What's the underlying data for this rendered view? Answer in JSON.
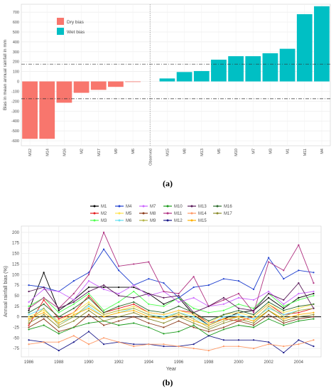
{
  "chart_data": [
    {
      "type": "bar",
      "label": "(a)",
      "ylabel": "Bias in mean annual rainfall in mm",
      "ylim": [
        -650,
        780
      ],
      "yticks": [
        -600,
        -500,
        -400,
        -300,
        -200,
        -100,
        0,
        100,
        200,
        300,
        400,
        500,
        600,
        700
      ],
      "categories": [
        "M12",
        "M14",
        "M16",
        "M2",
        "M17",
        "M9",
        "M6",
        "Observed",
        "M15",
        "M8",
        "M13",
        "M5",
        "M10",
        "M7",
        "M3",
        "M1",
        "M11",
        "M4"
      ],
      "values": [
        -580,
        -580,
        -215,
        -115,
        -85,
        -55,
        -5,
        0,
        30,
        95,
        105,
        220,
        255,
        255,
        285,
        330,
        680,
        760
      ],
      "reference_lines": [
        175,
        -175
      ],
      "legend": [
        {
          "name": "Dry bias",
          "color": "#f8766d"
        },
        {
          "name": "Wet bias",
          "color": "#00bfc4"
        }
      ],
      "grid": true
    },
    {
      "type": "line",
      "label": "(b)",
      "xlabel": "Year",
      "ylabel": "Annual rainfall bias (%)",
      "xlim": [
        1985.5,
        2005.5
      ],
      "ylim": [
        -95,
        215
      ],
      "xticks": [
        1986,
        1988,
        1990,
        1992,
        1994,
        1996,
        1998,
        2000,
        2002,
        2004
      ],
      "yticks": [
        -75,
        -50,
        -25,
        0,
        25,
        50,
        75,
        100,
        125,
        150,
        175,
        200
      ],
      "x": [
        1986,
        1987,
        1988,
        1989,
        1990,
        1991,
        1992,
        1993,
        1994,
        1995,
        1996,
        1997,
        1998,
        1999,
        2000,
        2001,
        2002,
        2003,
        2004,
        2005
      ],
      "series": [
        {
          "name": "M1",
          "color": "#000000",
          "values": [
            15,
            105,
            15,
            40,
            70,
            70,
            70,
            70,
            55,
            30,
            45,
            5,
            -20,
            -5,
            10,
            15,
            45,
            20,
            45,
            55
          ]
        },
        {
          "name": "M2",
          "color": "#e41a1c",
          "values": [
            -20,
            40,
            -5,
            10,
            50,
            10,
            20,
            30,
            10,
            5,
            15,
            10,
            -15,
            -5,
            -10,
            0,
            30,
            5,
            10,
            20
          ]
        },
        {
          "name": "M3",
          "color": "#4dff4d",
          "values": [
            25,
            45,
            10,
            30,
            55,
            15,
            35,
            60,
            30,
            25,
            45,
            20,
            10,
            15,
            30,
            20,
            55,
            25,
            40,
            50
          ]
        },
        {
          "name": "M4",
          "color": "#1f3fcf",
          "values": [
            75,
            70,
            60,
            85,
            105,
            160,
            110,
            75,
            90,
            80,
            45,
            70,
            75,
            90,
            85,
            65,
            140,
            90,
            110,
            105
          ]
        },
        {
          "name": "M5",
          "color": "#ffe34d",
          "values": [
            0,
            15,
            -10,
            10,
            35,
            5,
            15,
            25,
            10,
            5,
            15,
            5,
            -15,
            5,
            10,
            0,
            30,
            10,
            20,
            30
          ]
        },
        {
          "name": "M6",
          "color": "#66e0f0",
          "values": [
            5,
            20,
            -15,
            0,
            25,
            0,
            10,
            20,
            5,
            0,
            10,
            0,
            -20,
            0,
            5,
            -5,
            20,
            5,
            15,
            20
          ]
        },
        {
          "name": "M7",
          "color": "#cc66ff",
          "values": [
            35,
            65,
            60,
            40,
            85,
            65,
            55,
            75,
            50,
            60,
            35,
            45,
            25,
            30,
            45,
            40,
            60,
            30,
            55,
            60
          ]
        },
        {
          "name": "M8",
          "color": "#8b3a1a",
          "values": [
            -25,
            -5,
            -35,
            -25,
            5,
            -20,
            -10,
            0,
            -15,
            -25,
            -10,
            -25,
            -35,
            -25,
            -10,
            -20,
            5,
            -15,
            -5,
            0
          ]
        },
        {
          "name": "M9",
          "color": "#b5b54a",
          "values": [
            -10,
            20,
            -20,
            0,
            30,
            5,
            15,
            20,
            5,
            -5,
            10,
            -5,
            -25,
            -10,
            0,
            -10,
            25,
            0,
            15,
            20
          ]
        },
        {
          "name": "M10",
          "color": "#1a9a1a",
          "values": [
            -30,
            -20,
            -40,
            -25,
            -15,
            -10,
            -20,
            -15,
            -25,
            -40,
            -35,
            -20,
            -45,
            -30,
            -20,
            -25,
            -5,
            -20,
            -10,
            -5
          ]
        },
        {
          "name": "M11",
          "color": "#b03080",
          "values": [
            20,
            45,
            20,
            55,
            100,
            200,
            120,
            125,
            130,
            60,
            55,
            95,
            25,
            40,
            55,
            10,
            130,
            110,
            170,
            80
          ]
        },
        {
          "name": "M12",
          "color": "#1a1a8a",
          "values": [
            -55,
            -60,
            -80,
            -60,
            -35,
            -65,
            -60,
            -65,
            -65,
            -70,
            -70,
            -65,
            -45,
            -55,
            -55,
            -55,
            -60,
            -85,
            -55,
            -70
          ]
        },
        {
          "name": "M13",
          "color": "#5a1a5a",
          "values": [
            60,
            70,
            20,
            35,
            60,
            75,
            50,
            45,
            55,
            45,
            50,
            10,
            25,
            45,
            20,
            15,
            55,
            40,
            80,
            20
          ]
        },
        {
          "name": "M14",
          "color": "#ff9966",
          "values": [
            -65,
            -60,
            -60,
            -45,
            -65,
            -50,
            -60,
            -70,
            -65,
            -65,
            -70,
            -75,
            -80,
            -70,
            -70,
            -75,
            -65,
            -70,
            -65,
            -55
          ]
        },
        {
          "name": "M15",
          "color": "#ffb000",
          "values": [
            -5,
            10,
            -15,
            5,
            20,
            0,
            10,
            15,
            0,
            -5,
            5,
            -10,
            -20,
            -5,
            0,
            -10,
            15,
            -5,
            5,
            10
          ]
        },
        {
          "name": "M16",
          "color": "#2a6a2a",
          "values": [
            10,
            30,
            0,
            20,
            45,
            10,
            25,
            35,
            15,
            10,
            25,
            10,
            -10,
            5,
            15,
            5,
            35,
            15,
            25,
            30
          ]
        },
        {
          "name": "M17",
          "color": "#8a8a2a",
          "values": [
            -15,
            5,
            -25,
            -10,
            15,
            -10,
            0,
            10,
            -5,
            -15,
            0,
            -15,
            -30,
            -15,
            -5,
            -15,
            15,
            -10,
            0,
            5
          ]
        }
      ],
      "reference_lines": [
        0
      ],
      "legend_position": "top",
      "grid": true
    }
  ]
}
